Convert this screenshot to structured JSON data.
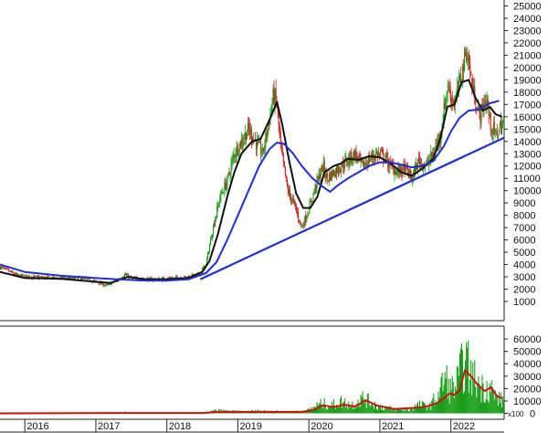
{
  "chart_data": [
    {
      "type": "candlestick",
      "panel": "price",
      "x_labels": [
        "2016",
        "2017",
        "2018",
        "2019",
        "2020",
        "2021",
        "2022"
      ],
      "ylim": [
        0,
        25000
      ],
      "yticks": [
        1000,
        2000,
        3000,
        4000,
        5000,
        6000,
        7000,
        8000,
        9000,
        10000,
        11000,
        12000,
        13000,
        14000,
        15000,
        16000,
        17000,
        18000,
        19000,
        20000,
        21000,
        22000,
        23000,
        24000,
        25000
      ],
      "x_range": [
        2015.65,
        2022.75
      ],
      "price_path": [
        [
          2015.65,
          3800
        ],
        [
          2015.9,
          3100
        ],
        [
          2016.2,
          2950
        ],
        [
          2016.5,
          2900
        ],
        [
          2016.8,
          2900
        ],
        [
          2017.0,
          2600
        ],
        [
          2017.15,
          2300
        ],
        [
          2017.3,
          2700
        ],
        [
          2017.4,
          3200
        ],
        [
          2017.5,
          2900
        ],
        [
          2017.7,
          2800
        ],
        [
          2017.9,
          2800
        ],
        [
          2018.1,
          2900
        ],
        [
          2018.3,
          3000
        ],
        [
          2018.45,
          3200
        ],
        [
          2018.55,
          4000
        ],
        [
          2018.65,
          7000
        ],
        [
          2018.75,
          9500
        ],
        [
          2018.85,
          10800
        ],
        [
          2018.95,
          13000
        ],
        [
          2019.05,
          14000
        ],
        [
          2019.15,
          15000
        ],
        [
          2019.25,
          14000
        ],
        [
          2019.35,
          13000
        ],
        [
          2019.45,
          16000
        ],
        [
          2019.5,
          17800
        ],
        [
          2019.55,
          17000
        ],
        [
          2019.6,
          13500
        ],
        [
          2019.7,
          10000
        ],
        [
          2019.8,
          8800
        ],
        [
          2019.9,
          7000
        ],
        [
          2020.0,
          8500
        ],
        [
          2020.1,
          10500
        ],
        [
          2020.2,
          12000
        ],
        [
          2020.25,
          11000
        ],
        [
          2020.35,
          11500
        ],
        [
          2020.45,
          12000
        ],
        [
          2020.55,
          12500
        ],
        [
          2020.65,
          13000
        ],
        [
          2020.75,
          12000
        ],
        [
          2020.85,
          12500
        ],
        [
          2020.95,
          13000
        ],
        [
          2021.05,
          12800
        ],
        [
          2021.15,
          12000
        ],
        [
          2021.25,
          11500
        ],
        [
          2021.35,
          11800
        ],
        [
          2021.45,
          11000
        ],
        [
          2021.55,
          12500
        ],
        [
          2021.65,
          12000
        ],
        [
          2021.75,
          13000
        ],
        [
          2021.85,
          14500
        ],
        [
          2021.95,
          18500
        ],
        [
          2022.05,
          17000
        ],
        [
          2022.15,
          19500
        ],
        [
          2022.22,
          21500
        ],
        [
          2022.3,
          18500
        ],
        [
          2022.4,
          16000
        ],
        [
          2022.5,
          17500
        ],
        [
          2022.55,
          15500
        ],
        [
          2022.62,
          14500
        ],
        [
          2022.68,
          15000
        ],
        [
          2022.72,
          15500
        ]
      ],
      "overlays": [
        {
          "type": "line",
          "name": "",
          "color": "#111111",
          "points": [
            [
              2015.65,
              3400
            ],
            [
              2016.0,
              2900
            ],
            [
              2016.5,
              2850
            ],
            [
              2017.0,
              2600
            ],
            [
              2017.2,
              2500
            ],
            [
              2017.45,
              3000
            ],
            [
              2017.7,
              2800
            ],
            [
              2018.0,
              2800
            ],
            [
              2018.3,
              2900
            ],
            [
              2018.5,
              3400
            ],
            [
              2018.6,
              4300
            ],
            [
              2018.72,
              6500
            ],
            [
              2018.85,
              9500
            ],
            [
              2018.95,
              11500
            ],
            [
              2019.05,
              13000
            ],
            [
              2019.2,
              14000
            ],
            [
              2019.32,
              14200
            ],
            [
              2019.45,
              15800
            ],
            [
              2019.55,
              17200
            ],
            [
              2019.62,
              15500
            ],
            [
              2019.72,
              12500
            ],
            [
              2019.82,
              9800
            ],
            [
              2019.92,
              8600
            ],
            [
              2020.02,
              8600
            ],
            [
              2020.12,
              9500
            ],
            [
              2020.22,
              11500
            ],
            [
              2020.35,
              12000
            ],
            [
              2020.45,
              12200
            ],
            [
              2020.55,
              12600
            ],
            [
              2020.7,
              12500
            ],
            [
              2020.85,
              12800
            ],
            [
              2021.0,
              12700
            ],
            [
              2021.15,
              12200
            ],
            [
              2021.3,
              11500
            ],
            [
              2021.45,
              11200
            ],
            [
              2021.6,
              11800
            ],
            [
              2021.75,
              12600
            ],
            [
              2021.85,
              14200
            ],
            [
              2021.95,
              16800
            ],
            [
              2022.05,
              17000
            ],
            [
              2022.15,
              18800
            ],
            [
              2022.25,
              19000
            ],
            [
              2022.35,
              17500
            ],
            [
              2022.45,
              16500
            ],
            [
              2022.55,
              16800
            ],
            [
              2022.63,
              16200
            ],
            [
              2022.72,
              16000
            ]
          ]
        },
        {
          "type": "line",
          "name": "",
          "color": "#1f2fd0",
          "points": [
            [
              2015.65,
              4000
            ],
            [
              2016.0,
              3400
            ],
            [
              2016.5,
              3100
            ],
            [
              2017.0,
              2900
            ],
            [
              2017.3,
              2800
            ],
            [
              2017.7,
              2700
            ],
            [
              2018.0,
              2700
            ],
            [
              2018.3,
              2800
            ],
            [
              2018.55,
              3300
            ],
            [
              2018.7,
              4200
            ],
            [
              2018.85,
              6000
            ],
            [
              2019.0,
              8000
            ],
            [
              2019.15,
              10000
            ],
            [
              2019.3,
              12000
            ],
            [
              2019.45,
              13400
            ],
            [
              2019.55,
              13900
            ],
            [
              2019.65,
              13800
            ],
            [
              2019.78,
              13000
            ],
            [
              2019.9,
              12000
            ],
            [
              2020.05,
              11000
            ],
            [
              2020.2,
              10300
            ],
            [
              2020.3,
              9900
            ],
            [
              2020.4,
              10400
            ],
            [
              2020.55,
              11000
            ],
            [
              2020.7,
              11500
            ],
            [
              2020.85,
              12000
            ],
            [
              2021.0,
              12300
            ],
            [
              2021.15,
              12300
            ],
            [
              2021.3,
              12100
            ],
            [
              2021.45,
              11900
            ],
            [
              2021.6,
              12000
            ],
            [
              2021.75,
              12400
            ],
            [
              2021.9,
              13600
            ],
            [
              2022.0,
              14800
            ],
            [
              2022.12,
              15900
            ],
            [
              2022.25,
              16500
            ],
            [
              2022.4,
              16600
            ],
            [
              2022.55,
              17100
            ],
            [
              2022.68,
              17300
            ]
          ]
        },
        {
          "type": "trendline",
          "name": "",
          "color": "#1f2fd0",
          "points": [
            [
              2018.47,
              2800
            ],
            [
              2022.75,
              14300
            ]
          ]
        }
      ]
    },
    {
      "type": "bar",
      "panel": "volume",
      "unit_label": "x100",
      "ylim": [
        0,
        70000
      ],
      "yticks": [
        0,
        10000,
        20000,
        30000,
        40000,
        50000,
        60000
      ],
      "volume_envelope": [
        [
          2015.65,
          200
        ],
        [
          2017.4,
          300
        ],
        [
          2017.42,
          3000
        ],
        [
          2017.45,
          300
        ],
        [
          2018.5,
          500
        ],
        [
          2018.7,
          3500
        ],
        [
          2018.9,
          2500
        ],
        [
          2019.1,
          2000
        ],
        [
          2019.3,
          3000
        ],
        [
          2019.5,
          2500
        ],
        [
          2019.7,
          2000
        ],
        [
          2019.9,
          2500
        ],
        [
          2020.0,
          4000
        ],
        [
          2020.1,
          9000
        ],
        [
          2020.2,
          12000
        ],
        [
          2020.3,
          9000
        ],
        [
          2020.45,
          14000
        ],
        [
          2020.6,
          10000
        ],
        [
          2020.75,
          18000
        ],
        [
          2020.9,
          12000
        ],
        [
          2021.0,
          8000
        ],
        [
          2021.2,
          5000
        ],
        [
          2021.4,
          4000
        ],
        [
          2021.55,
          10000
        ],
        [
          2021.7,
          8000
        ],
        [
          2021.82,
          22000
        ],
        [
          2021.92,
          42000
        ],
        [
          2022.0,
          28000
        ],
        [
          2022.08,
          35000
        ],
        [
          2022.15,
          52000
        ],
        [
          2022.2,
          65000
        ],
        [
          2022.28,
          45000
        ],
        [
          2022.35,
          40000
        ],
        [
          2022.45,
          30000
        ],
        [
          2022.55,
          33000
        ],
        [
          2022.62,
          20000
        ],
        [
          2022.72,
          15000
        ]
      ],
      "overlays": [
        {
          "type": "line",
          "name": "",
          "color": "#cc1111",
          "points": [
            [
              2015.65,
              0
            ],
            [
              2017.42,
              300
            ],
            [
              2018.5,
              300
            ],
            [
              2018.75,
              1200
            ],
            [
              2019.3,
              1200
            ],
            [
              2019.9,
              1200
            ],
            [
              2020.05,
              2500
            ],
            [
              2020.2,
              6500
            ],
            [
              2020.35,
              5000
            ],
            [
              2020.5,
              7000
            ],
            [
              2020.65,
              5500
            ],
            [
              2020.8,
              10500
            ],
            [
              2020.95,
              6500
            ],
            [
              2021.2,
              3500
            ],
            [
              2021.5,
              4500
            ],
            [
              2021.65,
              5500
            ],
            [
              2021.8,
              8000
            ],
            [
              2021.9,
              12000
            ],
            [
              2021.98,
              16000
            ],
            [
              2022.05,
              15000
            ],
            [
              2022.12,
              18000
            ],
            [
              2022.2,
              35000
            ],
            [
              2022.28,
              30000
            ],
            [
              2022.38,
              23000
            ],
            [
              2022.48,
              18000
            ],
            [
              2022.56,
              21000
            ],
            [
              2022.65,
              14000
            ],
            [
              2022.72,
              12000
            ]
          ]
        }
      ]
    }
  ]
}
